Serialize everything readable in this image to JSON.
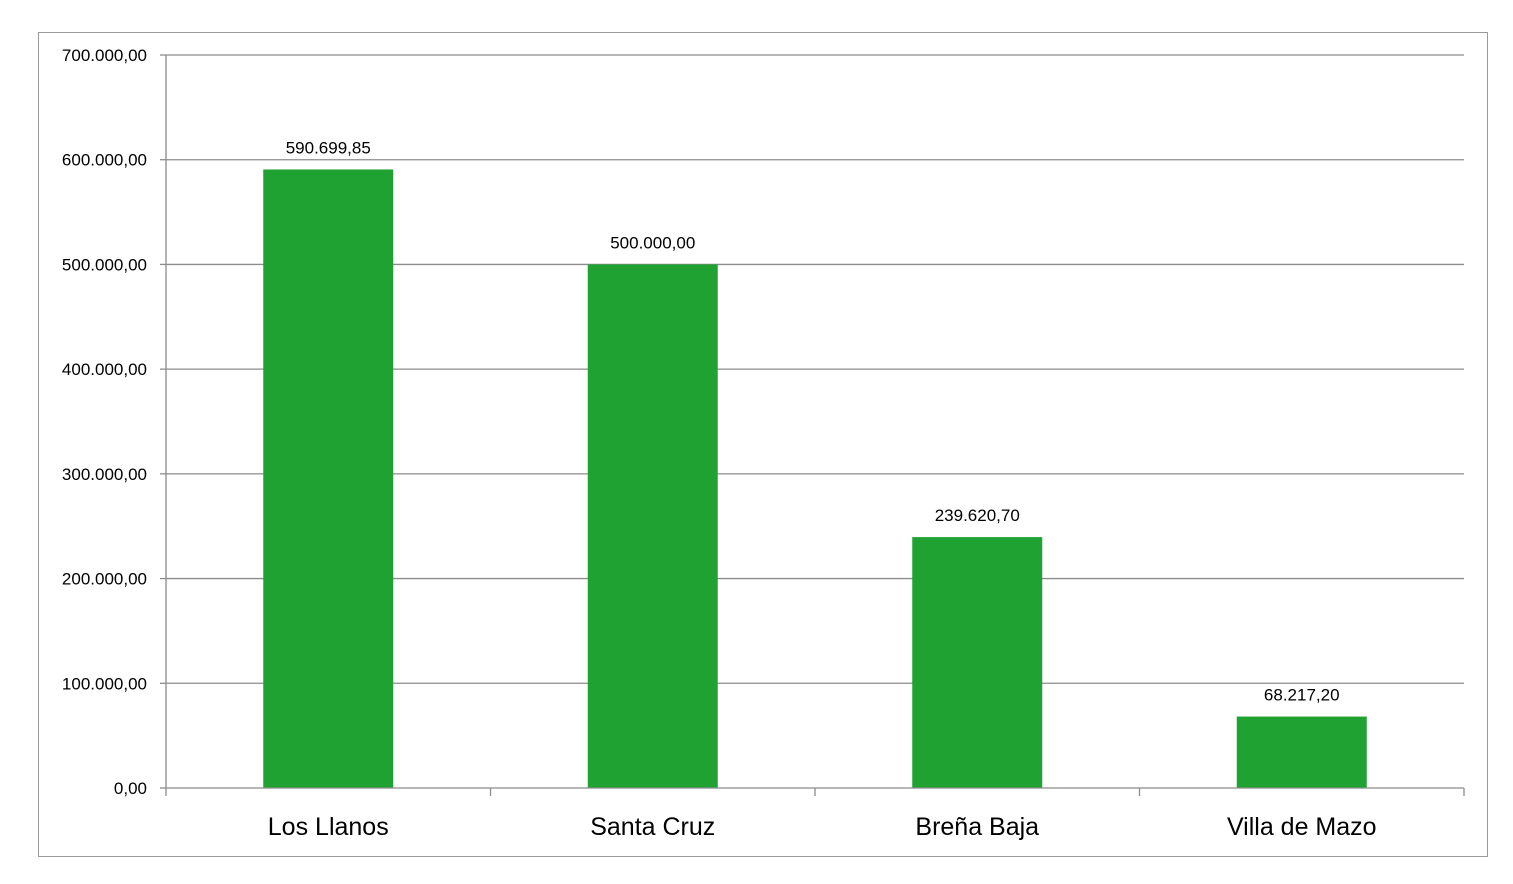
{
  "chart_data": {
    "type": "bar",
    "title": "",
    "xlabel": "",
    "ylabel": "",
    "categories": [
      "Los Llanos",
      "Santa Cruz",
      "Breña Baja",
      "Villa de Mazo"
    ],
    "values": [
      590699.85,
      500000.0,
      239620.7,
      68217.2
    ],
    "value_labels": [
      "590.699,85",
      "500.000,00",
      "239.620,70",
      "68.217,20"
    ],
    "ylim": [
      0,
      700000
    ],
    "yticks": [
      0,
      100000,
      200000,
      300000,
      400000,
      500000,
      600000,
      700000
    ],
    "ytick_labels": [
      "0,00",
      "100.000,00",
      "200.000,00",
      "300.000,00",
      "400.000,00",
      "500.000,00",
      "600.000,00",
      "700.000,00"
    ],
    "grid": true,
    "legend": "none",
    "bar_color": "#20a232",
    "grid_color": "#8c8c8c"
  }
}
